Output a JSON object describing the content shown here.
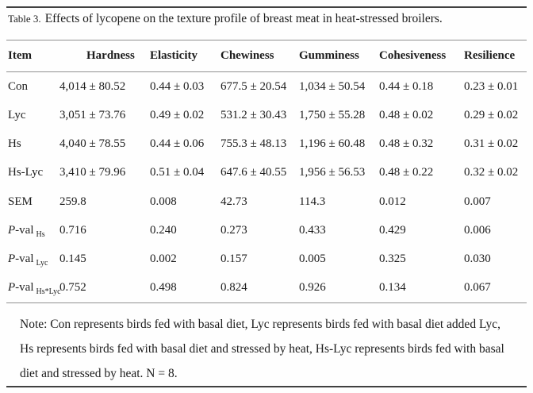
{
  "title": {
    "prefix": "Table 3.",
    "text": "Effects of lycopene on the texture profile of breast meat in heat-stressed broilers."
  },
  "table": {
    "columns": [
      "Item",
      "Hardness",
      "Elasticity",
      "Chewiness",
      "Gumminess",
      "Cohesiveness",
      "Resilience"
    ],
    "rows": [
      {
        "label": "Con",
        "pval": false,
        "sub": "",
        "values": [
          "4,014 ± 80.52",
          "0.44 ± 0.03",
          "677.5 ± 20.54",
          "1,034 ± 50.54",
          "0.44 ± 0.18",
          "0.23 ± 0.01"
        ]
      },
      {
        "label": "Lyc",
        "pval": false,
        "sub": "",
        "values": [
          "3,051 ± 73.76",
          "0.49 ± 0.02",
          "531.2 ± 30.43",
          "1,750 ± 55.28",
          "0.48 ± 0.02",
          "0.29 ± 0.02"
        ]
      },
      {
        "label": "Hs",
        "pval": false,
        "sub": "",
        "values": [
          "4,040 ± 78.55",
          "0.44 ± 0.06",
          "755.3 ± 48.13",
          "1,196 ± 60.48",
          "0.48 ± 0.32",
          "0.31 ± 0.02"
        ]
      },
      {
        "label": "Hs-Lyc",
        "pval": false,
        "sub": "",
        "values": [
          "3,410 ± 79.96",
          "0.51 ± 0.04",
          "647.6 ± 40.55",
          "1,956 ± 56.53",
          "0.48 ± 0.22",
          "0.32 ± 0.02"
        ]
      },
      {
        "label": "SEM",
        "pval": false,
        "sub": "",
        "values": [
          "259.8",
          "0.008",
          "42.73",
          "114.3",
          "0.012",
          "0.007"
        ]
      },
      {
        "label": "P-val",
        "pval": true,
        "sub": "Hs",
        "values": [
          "0.716",
          "0.240",
          "0.273",
          "0.433",
          "0.429",
          "0.006"
        ]
      },
      {
        "label": "P-val",
        "pval": true,
        "sub": "Lyc",
        "values": [
          "0.145",
          "0.002",
          "0.157",
          "0.005",
          "0.325",
          "0.030"
        ]
      },
      {
        "label": "P-val",
        "pval": true,
        "sub": "Hs*Lyc",
        "values": [
          "0.752",
          "0.498",
          "0.824",
          "0.926",
          "0.134",
          "0.067"
        ]
      }
    ]
  },
  "note": {
    "lines": [
      "Note: Con represents birds fed with basal diet, Lyc represents birds fed with basal diet added Lyc,",
      "Hs represents birds fed with basal diet and stressed by heat, Hs-Lyc represents birds fed with basal",
      "diet and stressed by heat. N = 8."
    ]
  },
  "colors": {
    "text": "#1c1c1c",
    "rule_thick": "#414141",
    "rule_thin": "#909090",
    "background": "#fefefe"
  }
}
